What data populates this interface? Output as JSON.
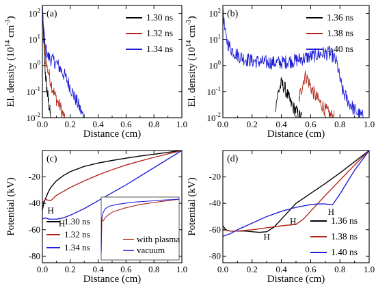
{
  "colors": {
    "black": "#000000",
    "red": "#b0281a",
    "blue": "#1f1fd6"
  },
  "chart_data": [
    {
      "panel": "(a)",
      "type": "line",
      "xlabel": "Distance (cm)",
      "ylabel": "El. density (10¹⁴ cm⁻³)",
      "ylabel_main": "El. density (10",
      "ylabel_exp": "14",
      "ylabel_unit": " cm",
      "ylabel_unit_exp": "-3",
      "ylabel_close": ")",
      "xlim": [
        0,
        1.0
      ],
      "ylim": [
        0.01,
        200
      ],
      "yscale": "log",
      "x_ticks": [
        "0.0",
        "0.2",
        "0.4",
        "0.6",
        "0.8",
        "1.0"
      ],
      "y_ticks": [
        {
          "base": "10",
          "exp": "2"
        },
        {
          "base": "10",
          "exp": "1"
        },
        {
          "base": "10",
          "exp": "0"
        },
        {
          "base": "10",
          "exp": "-1"
        },
        {
          "base": "10",
          "exp": "-2"
        }
      ],
      "legend_position": "top-right",
      "series": [
        {
          "name": "1.30 ns",
          "color": "black",
          "noisy": true,
          "x": [
            0.0,
            0.005,
            0.01,
            0.015,
            0.02,
            0.025,
            0.03,
            0.04,
            0.05,
            0.06
          ],
          "y": [
            150,
            40,
            8,
            2,
            0.6,
            0.3,
            0.15,
            0.06,
            0.025,
            0.01
          ]
        },
        {
          "name": "1.32 ns",
          "color": "red",
          "noisy": true,
          "x": [
            0.0,
            0.01,
            0.02,
            0.03,
            0.05,
            0.07,
            0.09,
            0.11,
            0.13,
            0.15,
            0.16
          ],
          "y": [
            150,
            20,
            3,
            1.0,
            0.4,
            0.15,
            0.07,
            0.04,
            0.025,
            0.012,
            0.01
          ]
        },
        {
          "name": "1.34 ns",
          "color": "blue",
          "noisy": true,
          "x": [
            0.0,
            0.01,
            0.02,
            0.04,
            0.06,
            0.08,
            0.1,
            0.12,
            0.14,
            0.16,
            0.18,
            0.2,
            0.22,
            0.24,
            0.26,
            0.28,
            0.3
          ],
          "y": [
            150,
            25,
            5,
            2.2,
            1.8,
            1.5,
            1.2,
            0.9,
            0.6,
            0.4,
            0.25,
            0.15,
            0.08,
            0.05,
            0.03,
            0.015,
            0.01
          ]
        }
      ]
    },
    {
      "panel": "(b)",
      "type": "line",
      "xlabel": "Distance (cm)",
      "ylabel": "El. density (10¹⁴ cm⁻³)",
      "ylabel_main": "El. density (10",
      "ylabel_exp": "14",
      "ylabel_unit": " cm",
      "ylabel_unit_exp": "-3",
      "ylabel_close": ")",
      "xlim": [
        0,
        1.0
      ],
      "ylim": [
        0.01,
        200
      ],
      "yscale": "log",
      "x_ticks": [
        "0.0",
        "0.2",
        "0.4",
        "0.6",
        "0.8",
        "1.0"
      ],
      "y_ticks": [
        {
          "base": "10",
          "exp": "2"
        },
        {
          "base": "10",
          "exp": "1"
        },
        {
          "base": "10",
          "exp": "0"
        },
        {
          "base": "10",
          "exp": "-1"
        },
        {
          "base": "10",
          "exp": "-2"
        }
      ],
      "legend_position": "top-right",
      "series": [
        {
          "name": "1.36 ns",
          "color": "black",
          "noisy": true,
          "x": [
            0.36,
            0.38,
            0.4,
            0.42,
            0.44,
            0.46,
            0.48,
            0.5,
            0.52,
            0.54
          ],
          "y": [
            0.03,
            0.1,
            0.2,
            0.15,
            0.08,
            0.04,
            0.025,
            0.018,
            0.012,
            0.01
          ]
        },
        {
          "name": "1.38 ns",
          "color": "red",
          "noisy": true,
          "x": [
            0.52,
            0.54,
            0.56,
            0.58,
            0.6,
            0.62,
            0.64,
            0.66,
            0.68,
            0.7,
            0.72,
            0.74,
            0.76
          ],
          "y": [
            0.05,
            0.15,
            0.4,
            0.3,
            0.15,
            0.09,
            0.06,
            0.04,
            0.03,
            0.02,
            0.015,
            0.012,
            0.01
          ]
        },
        {
          "name": "1.40 ns",
          "color": "blue",
          "noisy": true,
          "x": [
            0.0,
            0.01,
            0.02,
            0.04,
            0.06,
            0.1,
            0.15,
            0.2,
            0.3,
            0.4,
            0.5,
            0.6,
            0.65,
            0.7,
            0.75,
            0.78,
            0.8,
            0.82,
            0.86,
            0.9,
            0.94,
            0.97
          ],
          "y": [
            200,
            30,
            12,
            6,
            4,
            2.5,
            1.8,
            1.5,
            1.3,
            1.3,
            1.6,
            2.2,
            2.6,
            3.0,
            2.4,
            1.2,
            0.3,
            0.1,
            0.04,
            0.02,
            0.012,
            0.01
          ]
        }
      ]
    },
    {
      "panel": "(c)",
      "type": "line",
      "xlabel": "Distance (cm)",
      "ylabel": "Potential (kV)",
      "xlim": [
        0,
        1.0
      ],
      "ylim": [
        -85,
        0
      ],
      "x_ticks": [
        "0.0",
        "0.2",
        "0.4",
        "0.6",
        "0.8",
        "1.0"
      ],
      "y_ticks": [
        "-20",
        "-40",
        "-60",
        "-80"
      ],
      "y_tick_values": [
        -20,
        -40,
        -60,
        -80
      ],
      "legend_position": "bottom-left",
      "annotations": [
        {
          "text": "H",
          "x": 0.06,
          "y": -45
        },
        {
          "text": "H",
          "x": 0.14,
          "y": -55
        }
      ],
      "series": [
        {
          "name": "1.30 ns",
          "color": "black",
          "x": [
            0.0,
            0.01,
            0.02,
            0.04,
            0.06,
            0.1,
            0.15,
            0.2,
            0.3,
            0.4,
            0.5,
            0.6,
            0.7,
            0.8,
            0.9,
            1.0
          ],
          "y": [
            -45,
            -40,
            -37,
            -32,
            -28,
            -23,
            -19,
            -16,
            -12,
            -9.5,
            -7.5,
            -5.8,
            -4.2,
            -2.8,
            -1.4,
            0
          ]
        },
        {
          "name": "1.32 ns",
          "color": "red",
          "x": [
            0.0,
            0.02,
            0.04,
            0.06,
            0.08,
            0.1,
            0.15,
            0.2,
            0.3,
            0.4,
            0.5,
            0.6,
            0.7,
            0.8,
            0.9,
            1.0
          ],
          "y": [
            -40,
            -37,
            -37.5,
            -38,
            -36,
            -34,
            -31,
            -28,
            -23,
            -18.5,
            -14.5,
            -11,
            -8,
            -5.2,
            -2.6,
            0
          ]
        },
        {
          "name": "1.34 ns",
          "color": "blue",
          "x": [
            0.0,
            0.02,
            0.05,
            0.1,
            0.15,
            0.2,
            0.25,
            0.3,
            0.35,
            0.4,
            0.5,
            0.6,
            0.7,
            0.8,
            0.9,
            1.0
          ],
          "y": [
            -52,
            -51,
            -52,
            -52,
            -51,
            -49,
            -46.5,
            -44,
            -41,
            -38,
            -32,
            -26,
            -19.5,
            -13,
            -6.5,
            0
          ]
        }
      ],
      "inset": {
        "legend": [
          "with plasma",
          "vacuum"
        ],
        "series": [
          {
            "name": "with plasma",
            "color": "red",
            "x": [
              0.0,
              0.01,
              0.03,
              0.05,
              0.08,
              0.15,
              0.3,
              0.5,
              0.7,
              1.0
            ],
            "y": [
              -75,
              -30,
              -32,
              -28,
              -25,
              -20,
              -15,
              -10,
              -7,
              -3
            ]
          },
          {
            "name": "vacuum",
            "color": "blue",
            "x": [
              0.0,
              0.005,
              0.02,
              0.05,
              0.1,
              0.2,
              0.4,
              0.6,
              0.8,
              1.0
            ],
            "y": [
              -75,
              -30,
              -22,
              -16,
              -12.5,
              -10,
              -7,
              -5.5,
              -4,
              -3
            ]
          }
        ]
      }
    },
    {
      "panel": "(d)",
      "type": "line",
      "xlabel": "Distance (cm)",
      "ylabel": "Potential (kV)",
      "xlim": [
        0,
        1.0
      ],
      "ylim": [
        -85,
        0
      ],
      "x_ticks": [
        "0.0",
        "0.2",
        "0.4",
        "0.6",
        "0.8",
        "1.0"
      ],
      "y_ticks": [
        "-20",
        "-40",
        "-60",
        "-80"
      ],
      "y_tick_values": [
        -20,
        -40,
        -60,
        -80
      ],
      "legend_position": "bottom-right",
      "annotations": [
        {
          "text": "H",
          "x": 0.3,
          "y": -65
        },
        {
          "text": "H",
          "x": 0.48,
          "y": -53
        },
        {
          "text": "H",
          "x": 0.74,
          "y": -46
        }
      ],
      "series": [
        {
          "name": "1.36 ns",
          "color": "black",
          "x": [
            0.0,
            0.02,
            0.05,
            0.1,
            0.15,
            0.2,
            0.25,
            0.3,
            0.35,
            0.4,
            0.45,
            0.5,
            0.6,
            0.7,
            0.8,
            0.9,
            1.0
          ],
          "y": [
            -57,
            -60,
            -61,
            -61,
            -61,
            -61.5,
            -62,
            -61.5,
            -58,
            -52,
            -46,
            -40,
            -32.5,
            -25,
            -17,
            -8.5,
            0
          ]
        },
        {
          "name": "1.38 ns",
          "color": "red",
          "x": [
            0.0,
            0.05,
            0.1,
            0.15,
            0.2,
            0.3,
            0.4,
            0.45,
            0.5,
            0.55,
            0.6,
            0.65,
            0.7,
            0.8,
            0.9,
            1.0
          ],
          "y": [
            -60,
            -61,
            -61,
            -60.5,
            -60,
            -58.5,
            -57,
            -56.5,
            -56,
            -52,
            -46,
            -40,
            -34,
            -22.5,
            -11,
            0
          ]
        },
        {
          "name": "1.40 ns",
          "color": "blue",
          "x": [
            0.0,
            0.05,
            0.1,
            0.2,
            0.3,
            0.4,
            0.5,
            0.6,
            0.65,
            0.7,
            0.73,
            0.75,
            0.8,
            0.85,
            0.9,
            0.95,
            1.0
          ],
          "y": [
            -65,
            -63,
            -60,
            -55,
            -50,
            -46,
            -43,
            -41,
            -40.5,
            -40.5,
            -41,
            -41,
            -33,
            -24,
            -15,
            -7.5,
            0
          ]
        }
      ]
    }
  ]
}
